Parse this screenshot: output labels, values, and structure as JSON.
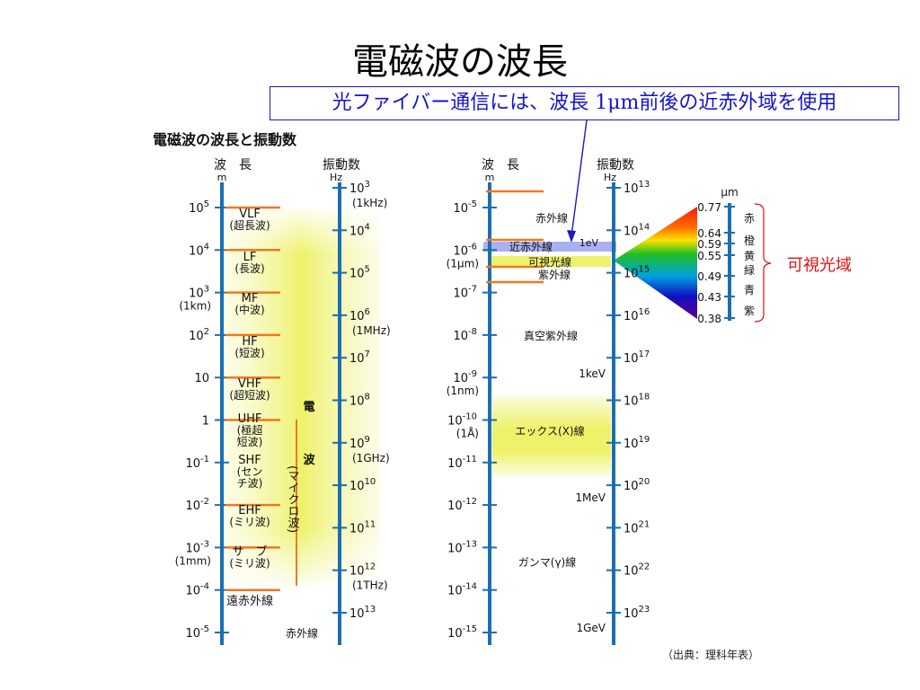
{
  "title": "電磁波の波長",
  "callout": "光ファイバー通信には、波長 1μm前後の近赤外域を使用",
  "subtitle": "電磁波の波長と振動数",
  "source": "（出典：理科年表）",
  "left_chart": {
    "header_wavelength": "波　長",
    "header_wavelength_unit": "m",
    "header_frequency": "振動数",
    "header_frequency_unit": "Hz",
    "wavelength_ticks": [
      {
        "base": "10",
        "exp": "5",
        "note": ""
      },
      {
        "base": "10",
        "exp": "4",
        "note": ""
      },
      {
        "base": "10",
        "exp": "3",
        "note": "(1km)"
      },
      {
        "base": "10",
        "exp": "2",
        "note": ""
      },
      {
        "base": "10",
        "exp": "",
        "note": ""
      },
      {
        "base": "1",
        "exp": "",
        "note": ""
      },
      {
        "base": "10",
        "exp": "-1",
        "note": ""
      },
      {
        "base": "10",
        "exp": "-2",
        "note": ""
      },
      {
        "base": "10",
        "exp": "-3",
        "note": "(1mm)"
      },
      {
        "base": "10",
        "exp": "-4",
        "note": ""
      },
      {
        "base": "10",
        "exp": "-5",
        "note": ""
      }
    ],
    "frequency_ticks": [
      {
        "base": "10",
        "exp": "3",
        "note": "(1kHz)"
      },
      {
        "base": "10",
        "exp": "4",
        "note": ""
      },
      {
        "base": "10",
        "exp": "5",
        "note": ""
      },
      {
        "base": "10",
        "exp": "6",
        "note": "(1MHz)"
      },
      {
        "base": "10",
        "exp": "7",
        "note": ""
      },
      {
        "base": "10",
        "exp": "8",
        "note": ""
      },
      {
        "base": "10",
        "exp": "9",
        "note": "(1GHz)"
      },
      {
        "base": "10",
        "exp": "10",
        "note": ""
      },
      {
        "base": "10",
        "exp": "11",
        "note": ""
      },
      {
        "base": "10",
        "exp": "12",
        "note": "(1THz)"
      },
      {
        "base": "10",
        "exp": "13",
        "note": ""
      }
    ],
    "bands": [
      [
        "VLF",
        "(超長波)"
      ],
      [
        "LF",
        "(長波)"
      ],
      [
        "MF",
        "(中波)"
      ],
      [
        "HF",
        "(短波)"
      ],
      [
        "VHF",
        "(超短波)"
      ],
      [
        "UHF",
        "(極超",
        "短波)"
      ],
      [
        "SHF",
        "(セン",
        "チ波)"
      ],
      [
        "EHF",
        "(ミリ波)"
      ],
      [
        "サ　ブ",
        "(ミリ波)"
      ],
      [
        "遠赤外線"
      ]
    ],
    "radio_label": [
      "電",
      "波"
    ],
    "micro_label": "(マイクロ波)",
    "infrared_label": "赤外線"
  },
  "right_chart": {
    "header_wavelength": "波　長",
    "header_wavelength_unit": "m",
    "header_frequency": "振動数",
    "header_frequency_unit": "Hz",
    "wavelength_ticks": [
      {
        "base": "10",
        "exp": "-5",
        "note": ""
      },
      {
        "base": "10",
        "exp": "-6",
        "note": "(1μm)"
      },
      {
        "base": "10",
        "exp": "-7",
        "note": ""
      },
      {
        "base": "10",
        "exp": "-8",
        "note": ""
      },
      {
        "base": "10",
        "exp": "-9",
        "note": "(1nm)"
      },
      {
        "base": "10",
        "exp": "-10",
        "note": "(1Å)"
      },
      {
        "base": "10",
        "exp": "-11",
        "note": ""
      },
      {
        "base": "10",
        "exp": "-12",
        "note": ""
      },
      {
        "base": "10",
        "exp": "-13",
        "note": ""
      },
      {
        "base": "10",
        "exp": "-14",
        "note": ""
      },
      {
        "base": "10",
        "exp": "-15",
        "note": ""
      }
    ],
    "frequency_ticks": [
      {
        "base": "10",
        "exp": "13",
        "note": ""
      },
      {
        "base": "10",
        "exp": "14",
        "note": ""
      },
      {
        "base": "10",
        "exp": "15",
        "note": ""
      },
      {
        "base": "10",
        "exp": "16",
        "note": ""
      },
      {
        "base": "10",
        "exp": "17",
        "note": ""
      },
      {
        "base": "10",
        "exp": "18",
        "note": ""
      },
      {
        "base": "10",
        "exp": "19",
        "note": ""
      },
      {
        "base": "10",
        "exp": "20",
        "note": ""
      },
      {
        "base": "10",
        "exp": "21",
        "note": ""
      },
      {
        "base": "10",
        "exp": "22",
        "note": ""
      },
      {
        "base": "10",
        "exp": "23",
        "note": ""
      }
    ],
    "energy_labels": [
      "1eV",
      "1keV",
      "1MeV",
      "1GeV"
    ],
    "infrared": "赤外線",
    "near_infrared": "近赤外線",
    "visible": "可視光線",
    "ultraviolet": "紫外線",
    "vacuum_uv": "真空紫外線",
    "xray": "エックス(X)線",
    "gamma": "ガンマ(γ)線"
  },
  "spectrum": {
    "unit": "μm",
    "values": [
      "0.77",
      "0.64",
      "0.59",
      "0.55",
      "0.49",
      "0.43",
      "0.38"
    ],
    "colors": [
      "赤",
      "橙",
      "黄",
      "緑",
      "青",
      "紫"
    ],
    "label": "可視光域"
  }
}
